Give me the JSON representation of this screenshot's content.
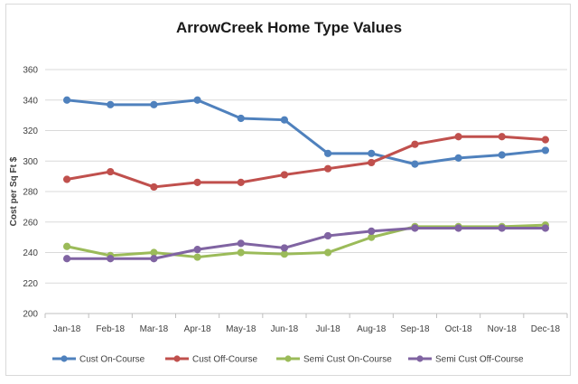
{
  "chart_data": {
    "type": "line",
    "title": "ArrowCreek Home Type Values",
    "xlabel": "",
    "ylabel": "Cost per Sq Ft $",
    "ylim": [
      200,
      360
    ],
    "yticks": [
      200,
      220,
      240,
      260,
      280,
      300,
      320,
      340,
      360
    ],
    "grid": "horizontal",
    "legend_position": "bottom",
    "categories": [
      "Jan-18",
      "Feb-18",
      "Mar-18",
      "Apr-18",
      "May-18",
      "Jun-18",
      "Jul-18",
      "Aug-18",
      "Sep-18",
      "Oct-18",
      "Nov-18",
      "Dec-18"
    ],
    "series": [
      {
        "name": "Cust On-Course",
        "color": "#4f81bd",
        "values": [
          340,
          337,
          337,
          340,
          328,
          327,
          305,
          305,
          298,
          302,
          304,
          307
        ]
      },
      {
        "name": "Cust Off-Course",
        "color": "#c0504d",
        "values": [
          288,
          293,
          283,
          286,
          286,
          291,
          295,
          299,
          311,
          316,
          316,
          314
        ]
      },
      {
        "name": "Semi Cust On-Course",
        "color": "#9bbb59",
        "values": [
          244,
          238,
          240,
          237,
          240,
          239,
          240,
          250,
          257,
          257,
          257,
          258
        ]
      },
      {
        "name": "Semi Cust Off-Course",
        "color": "#8064a2",
        "values": [
          236,
          236,
          236,
          242,
          246,
          243,
          251,
          254,
          256,
          256,
          256,
          256
        ]
      }
    ]
  }
}
